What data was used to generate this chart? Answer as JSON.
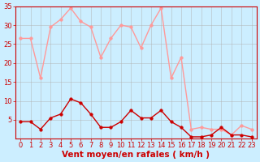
{
  "title": "Vent moyen/en rafales ( km/h )",
  "x_labels": [
    "0",
    "1",
    "2",
    "3",
    "4",
    "5",
    "6",
    "7",
    "8",
    "9",
    "10",
    "11",
    "12",
    "13",
    "14",
    "15",
    "16",
    "17",
    "18",
    "19",
    "20",
    "21",
    "22",
    "23"
  ],
  "x_values": [
    0,
    1,
    2,
    3,
    4,
    5,
    6,
    7,
    8,
    9,
    10,
    11,
    12,
    13,
    14,
    15,
    16,
    17,
    18,
    19,
    20,
    21,
    22,
    23
  ],
  "mean_wind": [
    4.5,
    4.5,
    2.5,
    5.5,
    6.5,
    10.5,
    9.5,
    6.5,
    3.0,
    3.0,
    4.5,
    7.5,
    5.5,
    5.5,
    7.5,
    4.5,
    3.0,
    0.5,
    0.5,
    1.0,
    3.0,
    1.0,
    1.0,
    0.5
  ],
  "gust_wind": [
    26.5,
    26.5,
    16.0,
    29.5,
    31.5,
    34.5,
    31.0,
    29.5,
    21.5,
    26.5,
    30.0,
    29.5,
    24.0,
    30.0,
    34.5,
    16.0,
    21.5,
    2.5,
    3.0,
    2.5,
    2.5,
    1.0,
    3.5,
    2.5
  ],
  "mean_color": "#cc0000",
  "gust_color": "#ff9999",
  "background_color": "#cceeff",
  "grid_color": "#b0b0b0",
  "ylim": [
    0,
    35
  ],
  "yticks": [
    5,
    10,
    15,
    20,
    25,
    30,
    35
  ],
  "marker_size": 2.5,
  "linewidth": 1.0,
  "tick_fontsize": 6,
  "xlabel_fontsize": 7.5
}
